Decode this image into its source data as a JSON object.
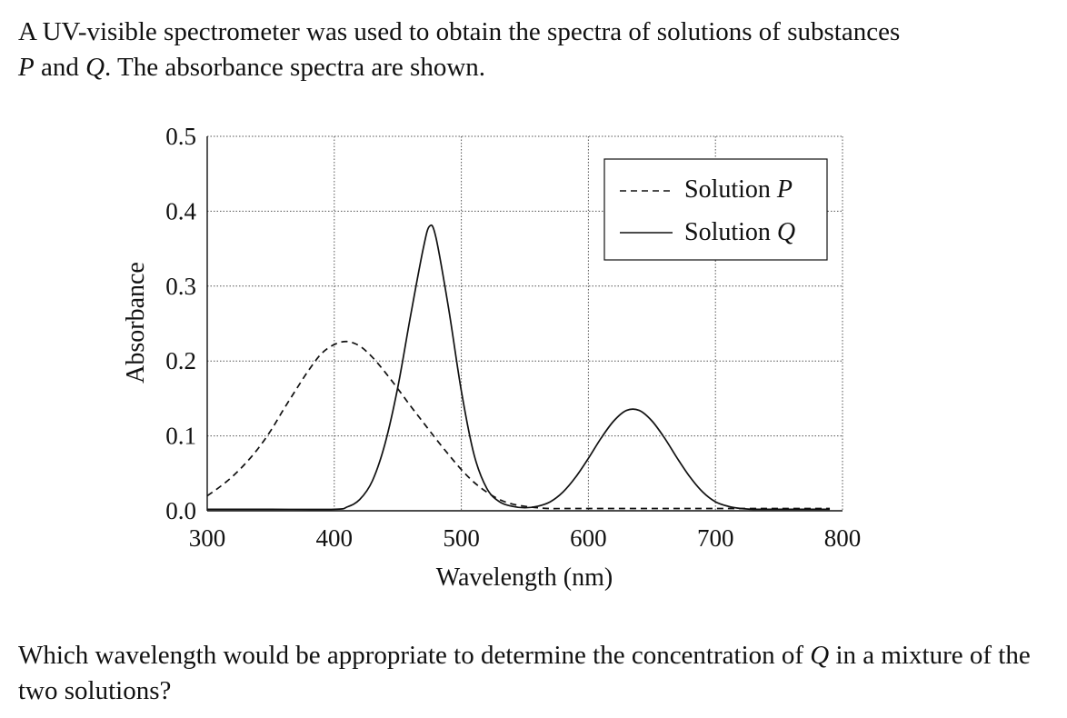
{
  "question": {
    "intro": {
      "line1": "A UV-visible spectrometer was used to obtain the spectra of solutions of substances",
      "line2_var1": "P",
      "line2_mid": " and ",
      "line2_var2": "Q",
      "line2_end": ". The absorbance spectra are shown."
    },
    "prompt": {
      "before": "Which wavelength would be appropriate to determine the concentration of ",
      "var": "Q",
      "after": " in a mixture of the two solutions?"
    }
  },
  "chart_data": {
    "type": "line",
    "title": "",
    "xlabel": "Wavelength (nm)",
    "ylabel": "Absorbance",
    "xlim": [
      300,
      800
    ],
    "ylim": [
      0,
      0.5
    ],
    "x_ticks": [
      300,
      400,
      500,
      600,
      700,
      800
    ],
    "x_tick_labels": [
      "300",
      "400",
      "500",
      "600",
      "700",
      "800"
    ],
    "y_ticks": [
      0,
      0.1,
      0.2,
      0.3,
      0.4,
      0.5
    ],
    "y_tick_labels": [
      "0.0",
      "0.1",
      "0.2",
      "0.3",
      "0.4",
      "0.5"
    ],
    "grid": true,
    "legend_position": "top-right",
    "series": [
      {
        "name": "Solution",
        "name_var": "P",
        "style": "dashed",
        "x": [
          300,
          310,
          320,
          330,
          340,
          350,
          360,
          370,
          380,
          390,
          400,
          410,
          420,
          430,
          440,
          450,
          460,
          470,
          480,
          490,
          500,
          510,
          520,
          530,
          540,
          550,
          560,
          570,
          580,
          600,
          650,
          700,
          750,
          790
        ],
        "y": [
          0.02,
          0.032,
          0.046,
          0.063,
          0.083,
          0.107,
          0.135,
          0.162,
          0.188,
          0.21,
          0.222,
          0.226,
          0.22,
          0.205,
          0.185,
          0.163,
          0.14,
          0.118,
          0.096,
          0.075,
          0.055,
          0.038,
          0.025,
          0.015,
          0.009,
          0.006,
          0.004,
          0.003,
          0.003,
          0.003,
          0.003,
          0.003,
          0.003,
          0.003
        ]
      },
      {
        "name": "Solution",
        "name_var": "Q",
        "style": "solid",
        "x": [
          300,
          350,
          400,
          410,
          420,
          430,
          440,
          450,
          460,
          470,
          475,
          480,
          490,
          500,
          510,
          520,
          530,
          540,
          550,
          560,
          570,
          580,
          590,
          600,
          610,
          620,
          630,
          640,
          650,
          660,
          670,
          680,
          690,
          700,
          710,
          720,
          730,
          750,
          790
        ],
        "y": [
          0.002,
          0.002,
          0.002,
          0.005,
          0.015,
          0.04,
          0.09,
          0.165,
          0.26,
          0.35,
          0.38,
          0.365,
          0.27,
          0.16,
          0.075,
          0.03,
          0.012,
          0.006,
          0.004,
          0.006,
          0.012,
          0.025,
          0.045,
          0.07,
          0.097,
          0.12,
          0.134,
          0.134,
          0.12,
          0.097,
          0.07,
          0.045,
          0.025,
          0.012,
          0.006,
          0.003,
          0.002,
          0.002,
          0.002
        ]
      }
    ]
  }
}
